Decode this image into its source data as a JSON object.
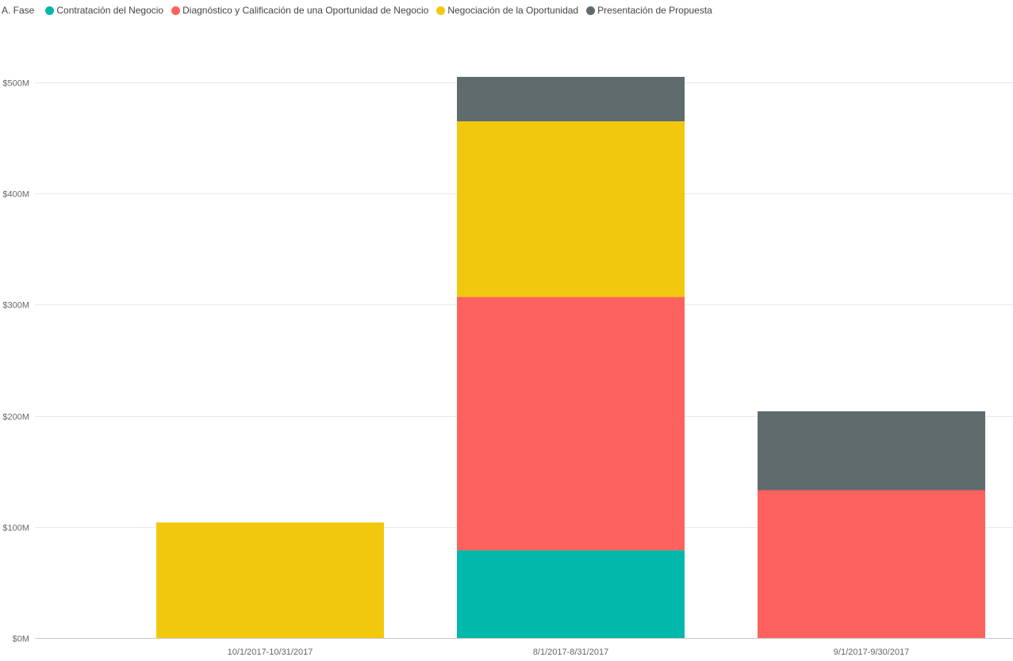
{
  "legend": {
    "title": "A. Fase"
  },
  "chart_data": {
    "type": "bar",
    "stacked": true,
    "legend_placement": "top-left",
    "grid": true,
    "categories": [
      "10/1/2017-10/31/2017",
      "8/1/2017-8/31/2017",
      "9/1/2017-9/30/2017"
    ],
    "ylim": [
      0,
      500
    ],
    "y_ticks": [
      0,
      100,
      200,
      300,
      400,
      500
    ],
    "y_tick_labels": [
      "$0M",
      "$100M",
      "$200M",
      "$300M",
      "$400M",
      "$500M"
    ],
    "title": "",
    "xlabel": "",
    "ylabel": "",
    "series": [
      {
        "name": "Contratación del Negocio",
        "color": "#01B8AA",
        "values": [
          0,
          79,
          0
        ]
      },
      {
        "name": "Diagnóstico y Calificación de una Oportunidad de Negocio",
        "color": "#FD625E",
        "values": [
          0,
          228,
          133
        ]
      },
      {
        "name": "Negociación de la Oportunidad",
        "color": "#F2C80F",
        "values": [
          104,
          158,
          0
        ]
      },
      {
        "name": "Presentación de Propuesta",
        "color": "#5F6B6D",
        "values": [
          0,
          40,
          71
        ]
      }
    ]
  }
}
